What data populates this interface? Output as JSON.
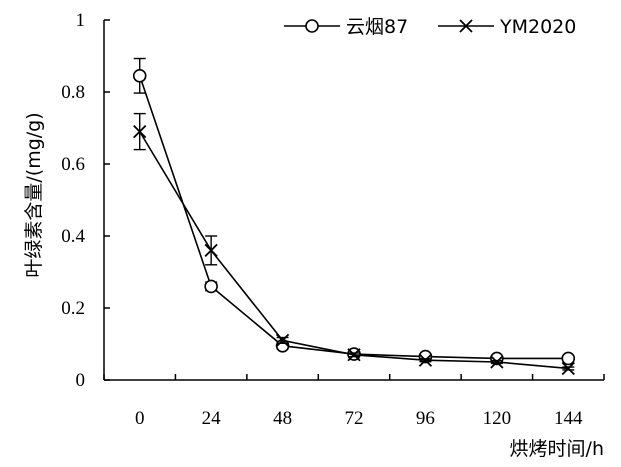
{
  "chart_data": {
    "type": "line",
    "title": "",
    "xlabel": "烘烤时间/h",
    "ylabel": "叶绿素含量/(mg/g)",
    "x": [
      0,
      24,
      48,
      72,
      96,
      120,
      144
    ],
    "x_tick_labels": [
      "0",
      "24",
      "48",
      "72",
      "96",
      "120",
      "144"
    ],
    "xlim": [
      -12,
      156
    ],
    "ylim": [
      0,
      1
    ],
    "y_ticks": [
      0,
      0.2,
      0.4,
      0.6,
      0.8,
      1
    ],
    "y_tick_labels": [
      "0",
      "0.2",
      "0.4",
      "0.6",
      "0.8",
      "1"
    ],
    "grid": false,
    "legend_position": "top-right",
    "series": [
      {
        "name": "云烟87",
        "marker": "circle",
        "color": "#000000",
        "values": [
          0.845,
          0.26,
          0.095,
          0.072,
          0.065,
          0.06,
          0.06
        ],
        "errors": [
          0.048,
          0.012,
          0.008,
          0.005,
          0.005,
          0.005,
          0.005
        ]
      },
      {
        "name": "YM2020",
        "marker": "x",
        "color": "#000000",
        "values": [
          0.69,
          0.36,
          0.11,
          0.07,
          0.055,
          0.05,
          0.032
        ],
        "errors": [
          0.05,
          0.04,
          0.008,
          0.005,
          0.004,
          0.004,
          0.004
        ]
      }
    ]
  }
}
